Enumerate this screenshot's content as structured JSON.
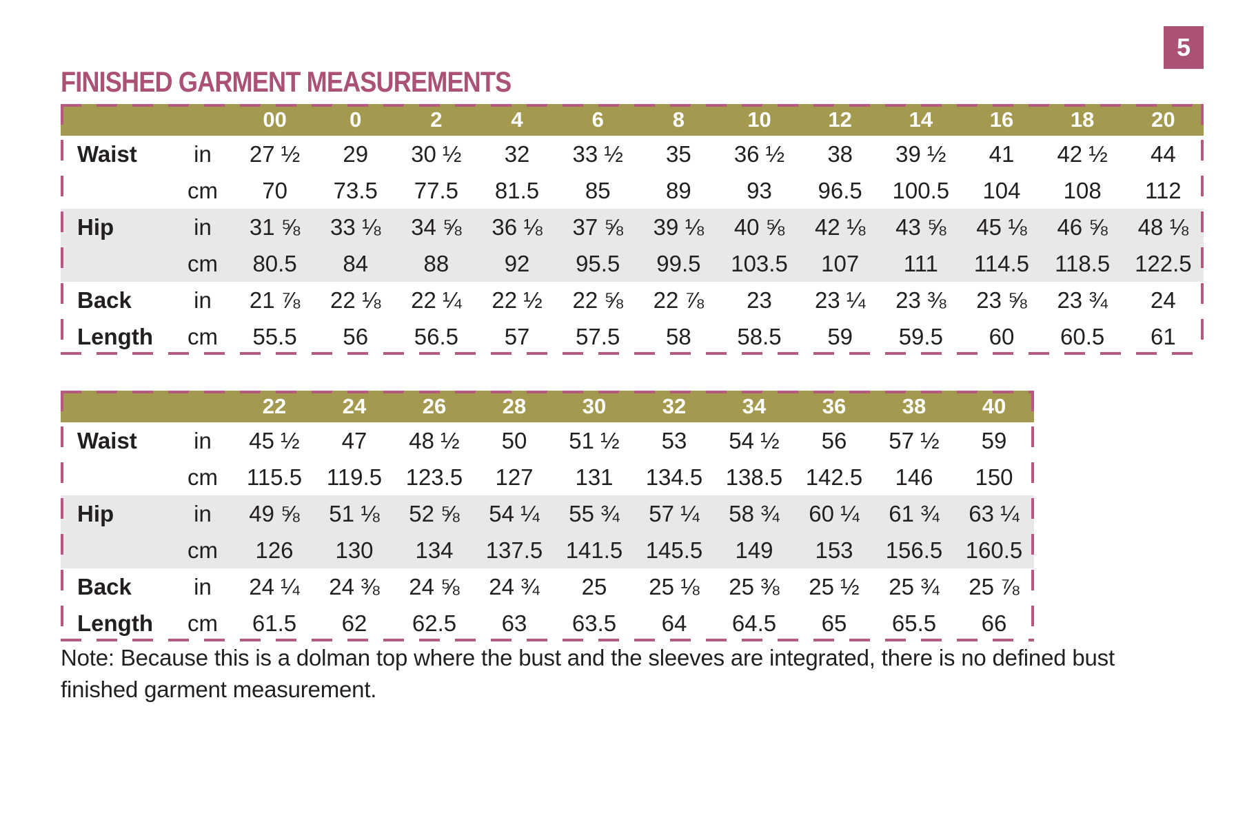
{
  "page": {
    "number": "5",
    "title": "FINISHED GARMENT MEASUREMENTS",
    "note": "Note: Because this is a dolman top where the bust and the sleeves are integrated, there is no defined bust\nfinished garment measurement."
  },
  "colors": {
    "header_olive": "#a49a4f",
    "accent_berry": "#aa5175",
    "dash_pink": "#b8577f",
    "row_shade": "#e9e8e8",
    "text_dark": "#231f20"
  },
  "tables": [
    {
      "name": "finished-garment-measurements-sizes-00-20",
      "sizes": [
        "00",
        "0",
        "2",
        "4",
        "6",
        "8",
        "10",
        "12",
        "14",
        "16",
        "18",
        "20"
      ],
      "rows": [
        {
          "label": "Waist",
          "unit": "in",
          "shaded": false,
          "values": [
            "27 ½",
            "29",
            "30 ½",
            "32",
            "33 ½",
            "35",
            "36 ½",
            "38",
            "39 ½",
            "41",
            "42 ½",
            "44"
          ]
        },
        {
          "label": "",
          "unit": "cm",
          "shaded": false,
          "values": [
            "70",
            "73.5",
            "77.5",
            "81.5",
            "85",
            "89",
            "93",
            "96.5",
            "100.5",
            "104",
            "108",
            "112"
          ]
        },
        {
          "label": "Hip",
          "unit": "in",
          "shaded": true,
          "values": [
            "31 ⅝",
            "33 ⅛",
            "34 ⅝",
            "36 ⅛",
            "37 ⅝",
            "39 ⅛",
            "40 ⅝",
            "42 ⅛",
            "43 ⅝",
            "45 ⅛",
            "46 ⅝",
            "48 ⅛"
          ]
        },
        {
          "label": "",
          "unit": "cm",
          "shaded": true,
          "values": [
            "80.5",
            "84",
            "88",
            "92",
            "95.5",
            "99.5",
            "103.5",
            "107",
            "111",
            "114.5",
            "118.5",
            "122.5"
          ]
        },
        {
          "label": "Back",
          "unit": "in",
          "shaded": false,
          "values": [
            "21 ⅞",
            "22 ⅛",
            "22 ¼",
            "22 ½",
            "22 ⅝",
            "22 ⅞",
            "23",
            "23 ¼",
            "23 ⅜",
            "23 ⅝",
            "23 ¾",
            "24"
          ]
        },
        {
          "label": "Length",
          "unit": "cm",
          "shaded": false,
          "values": [
            "55.5",
            "56",
            "56.5",
            "57",
            "57.5",
            "58",
            "58.5",
            "59",
            "59.5",
            "60",
            "60.5",
            "61"
          ]
        }
      ]
    },
    {
      "name": "finished-garment-measurements-sizes-22-40",
      "sizes": [
        "22",
        "24",
        "26",
        "28",
        "30",
        "32",
        "34",
        "36",
        "38",
        "40"
      ],
      "rows": [
        {
          "label": "Waist",
          "unit": "in",
          "shaded": false,
          "values": [
            "45 ½",
            "47",
            "48 ½",
            "50",
            "51 ½",
            "53",
            "54 ½",
            "56",
            "57 ½",
            "59"
          ]
        },
        {
          "label": "",
          "unit": "cm",
          "shaded": false,
          "values": [
            "115.5",
            "119.5",
            "123.5",
            "127",
            "131",
            "134.5",
            "138.5",
            "142.5",
            "146",
            "150"
          ]
        },
        {
          "label": "Hip",
          "unit": "in",
          "shaded": true,
          "values": [
            "49 ⅝",
            "51 ⅛",
            "52 ⅝",
            "54 ¼",
            "55 ¾",
            "57 ¼",
            "58 ¾",
            "60 ¼",
            "61 ¾",
            "63 ¼"
          ]
        },
        {
          "label": "",
          "unit": "cm",
          "shaded": true,
          "values": [
            "126",
            "130",
            "134",
            "137.5",
            "141.5",
            "145.5",
            "149",
            "153",
            "156.5",
            "160.5"
          ]
        },
        {
          "label": "Back",
          "unit": "in",
          "shaded": false,
          "values": [
            "24 ¼",
            "24 ⅜",
            "24 ⅝",
            "24 ¾",
            "25",
            "25 ⅛",
            "25 ⅜",
            "25 ½",
            "25 ¾",
            "25 ⅞"
          ]
        },
        {
          "label": "Length",
          "unit": "cm",
          "shaded": false,
          "values": [
            "61.5",
            "62",
            "62.5",
            "63",
            "63.5",
            "64",
            "64.5",
            "65",
            "65.5",
            "66"
          ]
        }
      ]
    }
  ]
}
